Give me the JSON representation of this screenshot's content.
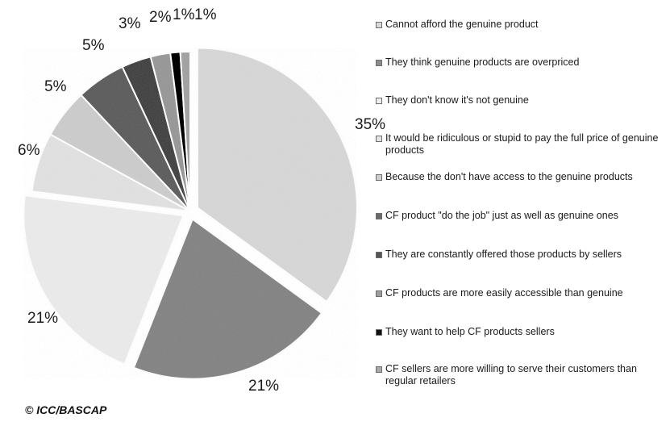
{
  "chart_data": {
    "type": "pie",
    "start_angle_deg": 0,
    "direction": "clockwise",
    "slices": [
      {
        "label": "Cannot afford the genuine product",
        "value": 35,
        "value_label": "35%",
        "color": "#d9d9d9",
        "exploded": true
      },
      {
        "label": "They think genuine products are overpriced",
        "value": 21,
        "value_label": "21%",
        "color": "#8c8c8c",
        "exploded": true
      },
      {
        "label": "They don't know it's not genuine",
        "value": 21,
        "value_label": "21%",
        "color": "#ececec",
        "exploded": true
      },
      {
        "label": "It would be ridiculous or stupid to pay the full price of genuine products",
        "value": 6,
        "value_label": "6%",
        "color": "#e3e3e3",
        "exploded": false
      },
      {
        "label": "Because the don't have access to the genuine products",
        "value": 5,
        "value_label": "5%",
        "color": "#cfcfcf",
        "exploded": false
      },
      {
        "label": "CF product \"do the job\" just as well as genuine ones",
        "value": 5,
        "value_label": "5%",
        "color": "#6a6a6a",
        "exploded": false
      },
      {
        "label": "They are constantly offered those products by sellers",
        "value": 3,
        "value_label": "3%",
        "color": "#555555",
        "exploded": false
      },
      {
        "label": "CF products are more easily accessible than genuine",
        "value": 2,
        "value_label": "2%",
        "color": "#9e9e9e",
        "exploded": false
      },
      {
        "label": "They want to help CF products sellers",
        "value": 1,
        "value_label": "1%",
        "color": "#111111",
        "exploded": false
      },
      {
        "label": "CF sellers are more willing to serve their customers than regular retailers",
        "value": 1,
        "value_label": "1%",
        "color": "#a8a8a8",
        "exploded": false
      }
    ],
    "legend_position": "right"
  },
  "copyright": "© ICC/BASCAP"
}
